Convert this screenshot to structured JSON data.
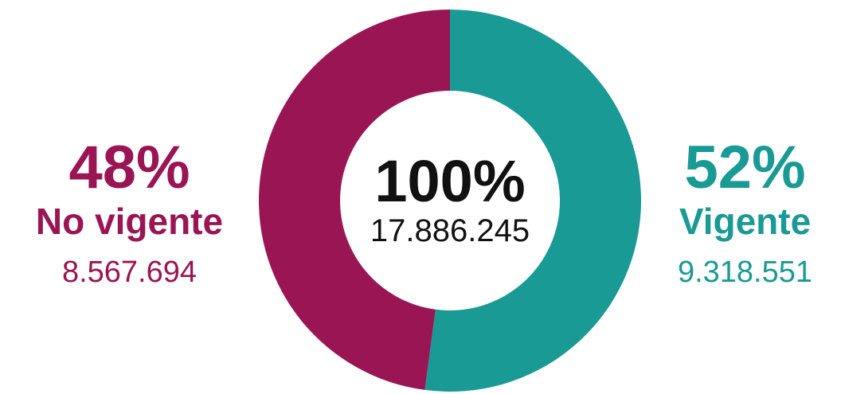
{
  "chart_data": {
    "type": "pie",
    "style": "donut",
    "center": {
      "percent_label": "100%",
      "total_label": "17.886.245",
      "total": 17886245
    },
    "slices": [
      {
        "name": "Vigente",
        "percent_label": "52%",
        "value_label": "9.318.551",
        "value": 9318551,
        "percent": 52,
        "color": "#1a9a94",
        "side": "right"
      },
      {
        "name": "No vigente",
        "percent_label": "48%",
        "value_label": "8.567.694",
        "value": 8567694,
        "percent": 48,
        "color": "#9a1553",
        "side": "left"
      }
    ],
    "legend": "none"
  }
}
